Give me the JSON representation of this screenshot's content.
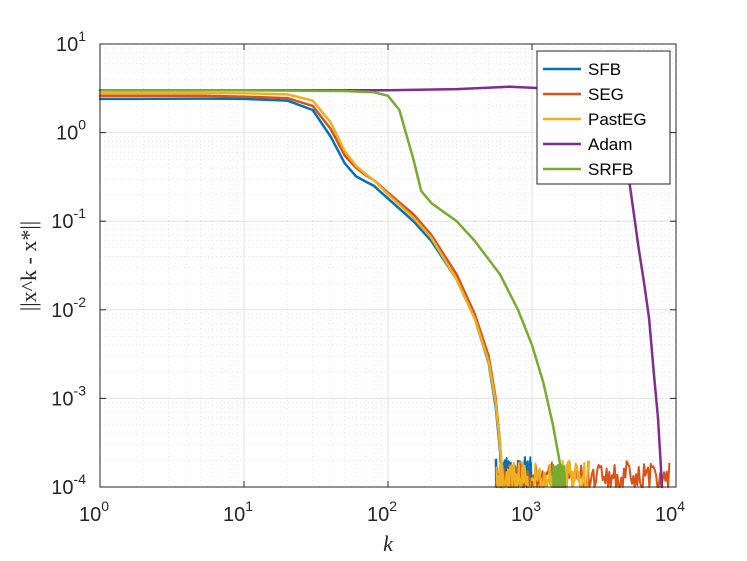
{
  "chart_data": {
    "type": "line",
    "xscale": "log",
    "yscale": "log",
    "xlim": [
      1,
      10000
    ],
    "ylim": [
      0.0001,
      10
    ],
    "xlabel": "k",
    "ylabel": "||x^k - x*||",
    "grid": true,
    "legend_position": "top-right",
    "x_ticks": [
      {
        "value": 1,
        "base": "10",
        "exp": "0"
      },
      {
        "value": 10,
        "base": "10",
        "exp": "1"
      },
      {
        "value": 100,
        "base": "10",
        "exp": "2"
      },
      {
        "value": 1000,
        "base": "10",
        "exp": "3"
      },
      {
        "value": 10000,
        "base": "10",
        "exp": "4"
      }
    ],
    "y_ticks": [
      {
        "value": 0.0001,
        "base": "10",
        "exp": "-4"
      },
      {
        "value": 0.001,
        "base": "10",
        "exp": "-3"
      },
      {
        "value": 0.01,
        "base": "10",
        "exp": "-2"
      },
      {
        "value": 0.1,
        "base": "10",
        "exp": "-1"
      },
      {
        "value": 1,
        "base": "10",
        "exp": "0"
      },
      {
        "value": 10,
        "base": "10",
        "exp": "1"
      }
    ],
    "series": [
      {
        "name": "SFB",
        "color": "#0072BD",
        "x": [
          1,
          5,
          10,
          20,
          30,
          40,
          50,
          60,
          70,
          80,
          100,
          150,
          200,
          300,
          400,
          500,
          560,
          600,
          620
        ],
        "y": [
          2.4,
          2.42,
          2.4,
          2.3,
          1.8,
          0.9,
          0.45,
          0.32,
          0.28,
          0.25,
          0.18,
          0.1,
          0.06,
          0.022,
          0.008,
          0.0025,
          0.0008,
          0.00025,
          0.0001
        ],
        "noise_floor": {
          "x_start": 560,
          "x_end": 1000,
          "y_min": 0.0001,
          "y_max": 0.00022
        }
      },
      {
        "name": "SEG",
        "color": "#D95319",
        "x": [
          1,
          5,
          10,
          20,
          30,
          40,
          50,
          60,
          70,
          80,
          100,
          150,
          200,
          300,
          400,
          500,
          560,
          600,
          630
        ],
        "y": [
          2.6,
          2.6,
          2.55,
          2.45,
          2.0,
          1.1,
          0.55,
          0.4,
          0.33,
          0.29,
          0.21,
          0.12,
          0.07,
          0.025,
          0.009,
          0.003,
          0.001,
          0.0003,
          0.0001
        ],
        "noise_floor": {
          "x_start": 560,
          "x_end": 9000,
          "y_min": 0.0001,
          "y_max": 0.0002
        }
      },
      {
        "name": "PastEG",
        "color": "#EDB120",
        "x": [
          1,
          5,
          10,
          20,
          30,
          40,
          50,
          60,
          70,
          80,
          100,
          150,
          200,
          300,
          400,
          500,
          560,
          600,
          640
        ],
        "y": [
          2.8,
          2.8,
          2.78,
          2.7,
          2.3,
          1.3,
          0.62,
          0.42,
          0.34,
          0.29,
          0.2,
          0.11,
          0.065,
          0.022,
          0.008,
          0.0026,
          0.0009,
          0.00028,
          0.0001
        ],
        "noise_floor": {
          "x_start": 560,
          "x_end": 2500,
          "y_min": 0.0001,
          "y_max": 0.0002
        }
      },
      {
        "name": "Adam",
        "color": "#7E2F8E",
        "x": [
          1,
          10,
          100,
          300,
          700,
          1000,
          2000,
          3000,
          3500,
          4000,
          4500,
          5000,
          5500,
          6000,
          6500,
          7000,
          7500,
          7800,
          8000
        ],
        "y": [
          3.0,
          3.0,
          3.0,
          3.1,
          3.3,
          3.2,
          3.0,
          2.8,
          2.2,
          1.3,
          0.5,
          0.15,
          0.05,
          0.02,
          0.008,
          0.002,
          0.0006,
          0.0002,
          0.0001
        ],
        "noise_floor": null
      },
      {
        "name": "SRFB",
        "color": "#77AC30",
        "x": [
          1,
          10,
          50,
          80,
          100,
          120,
          150,
          170,
          200,
          300,
          400,
          600,
          800,
          1000,
          1200,
          1400,
          1600,
          1700
        ],
        "y": [
          3.0,
          3.0,
          2.95,
          2.85,
          2.6,
          1.8,
          0.5,
          0.22,
          0.16,
          0.1,
          0.06,
          0.025,
          0.01,
          0.004,
          0.0015,
          0.0005,
          0.00015,
          0.0001
        ],
        "noise_floor": {
          "x_start": 1400,
          "x_end": 1700,
          "y_min": 0.0001,
          "y_max": 0.00018
        }
      }
    ]
  }
}
